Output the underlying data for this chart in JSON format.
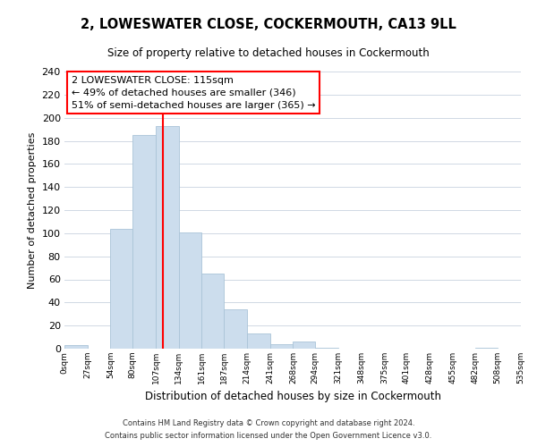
{
  "title": "2, LOWESWATER CLOSE, COCKERMOUTH, CA13 9LL",
  "subtitle": "Size of property relative to detached houses in Cockermouth",
  "xlabel": "Distribution of detached houses by size in Cockermouth",
  "ylabel": "Number of detached properties",
  "bar_color": "#ccdded",
  "bar_edge_color": "#aac4d8",
  "vline_x": 115,
  "vline_color": "red",
  "annotation_title": "2 LOWESWATER CLOSE: 115sqm",
  "annotation_line1": "← 49% of detached houses are smaller (346)",
  "annotation_line2": "51% of semi-detached houses are larger (365) →",
  "bin_edges": [
    0,
    27,
    54,
    80,
    107,
    134,
    161,
    187,
    214,
    241,
    268,
    294,
    321,
    348,
    375,
    401,
    428,
    455,
    482,
    508,
    535
  ],
  "bin_counts": [
    3,
    0,
    104,
    185,
    193,
    101,
    65,
    34,
    13,
    4,
    6,
    1,
    0,
    0,
    0,
    0,
    0,
    0,
    1,
    0
  ],
  "xlim": [
    0,
    535
  ],
  "ylim": [
    0,
    240
  ],
  "yticks": [
    0,
    20,
    40,
    60,
    80,
    100,
    120,
    140,
    160,
    180,
    200,
    220,
    240
  ],
  "xtick_labels": [
    "0sqm",
    "27sqm",
    "54sqm",
    "80sqm",
    "107sqm",
    "134sqm",
    "161sqm",
    "187sqm",
    "214sqm",
    "241sqm",
    "268sqm",
    "294sqm",
    "321sqm",
    "348sqm",
    "375sqm",
    "401sqm",
    "428sqm",
    "455sqm",
    "482sqm",
    "508sqm",
    "535sqm"
  ],
  "footer1": "Contains HM Land Registry data © Crown copyright and database right 2024.",
  "footer2": "Contains public sector information licensed under the Open Government Licence v3.0.",
  "background_color": "#ffffff",
  "grid_color": "#d0d8e4",
  "title_fontsize": 10.5,
  "subtitle_fontsize": 8.5,
  "ylabel_fontsize": 8,
  "xlabel_fontsize": 8.5,
  "ytick_fontsize": 8,
  "xtick_fontsize": 6.5,
  "footer_fontsize": 6,
  "ann_fontsize": 8
}
